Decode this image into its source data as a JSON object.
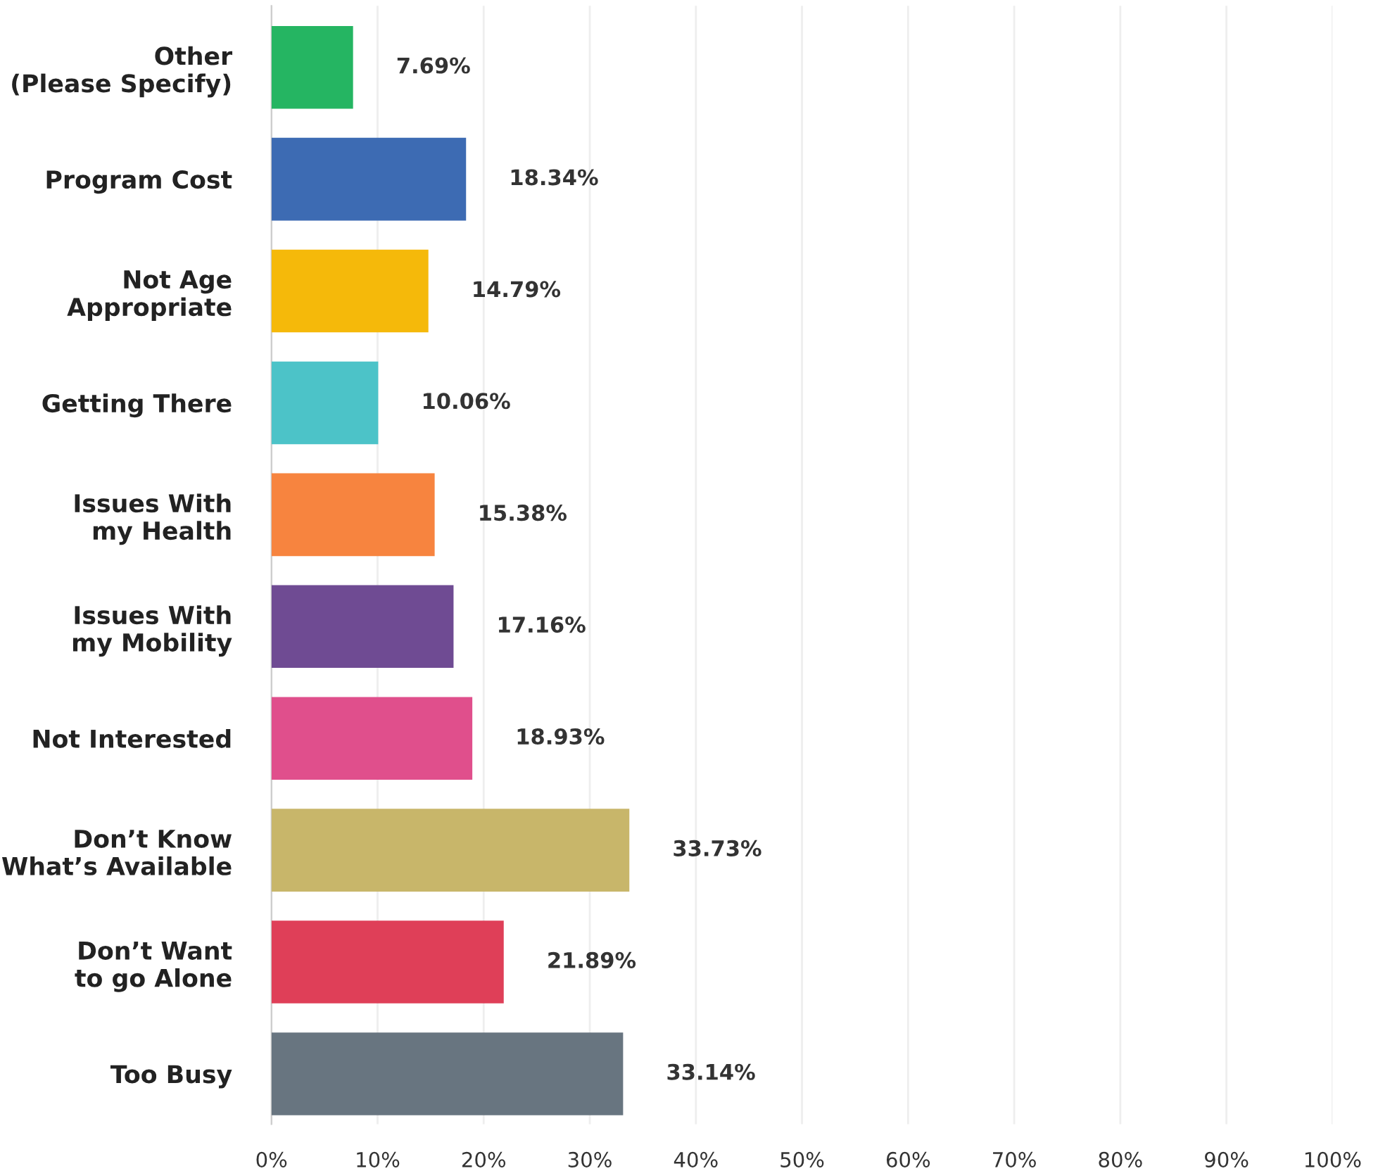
{
  "chart_data": {
    "type": "bar",
    "orientation": "horizontal",
    "categories": [
      "Other\n(Please Specify)",
      "Program Cost",
      "Not Age\nAppropriate",
      "Getting There",
      "Issues With\nmy Health",
      "Issues With\nmy Mobility",
      "Not Interested",
      "Don’t Know\nWhat’s Available",
      "Don’t Want\nto go Alone",
      "Too Busy"
    ],
    "values": [
      7.69,
      18.34,
      14.79,
      10.06,
      15.38,
      17.16,
      18.93,
      33.73,
      21.89,
      33.14
    ],
    "value_labels": [
      "7.69%",
      "18.34%",
      "14.79%",
      "10.06%",
      "15.38%",
      "17.16%",
      "18.93%",
      "33.73%",
      "21.89%",
      "33.14%"
    ],
    "colors": [
      "#25b562",
      "#3d6bb3",
      "#f5b90a",
      "#4cc3c8",
      "#f7843f",
      "#6f4b93",
      "#e04f8c",
      "#c8b66a",
      "#df3f58",
      "#687580"
    ],
    "xlim": [
      0,
      100
    ],
    "xticks": [
      {
        "value": 0,
        "label": "0%"
      },
      {
        "value": 10,
        "label": "10%"
      },
      {
        "value": 20,
        "label": "20%"
      },
      {
        "value": 30,
        "label": "30%"
      },
      {
        "value": 40,
        "label": "40%"
      },
      {
        "value": 50,
        "label": "50%"
      },
      {
        "value": 60,
        "label": "60%"
      },
      {
        "value": 70,
        "label": "70%"
      },
      {
        "value": 80,
        "label": "80%"
      },
      {
        "value": 90,
        "label": "90%"
      },
      {
        "value": 100,
        "label": "100%"
      }
    ],
    "grid": "x",
    "legend": false
  }
}
